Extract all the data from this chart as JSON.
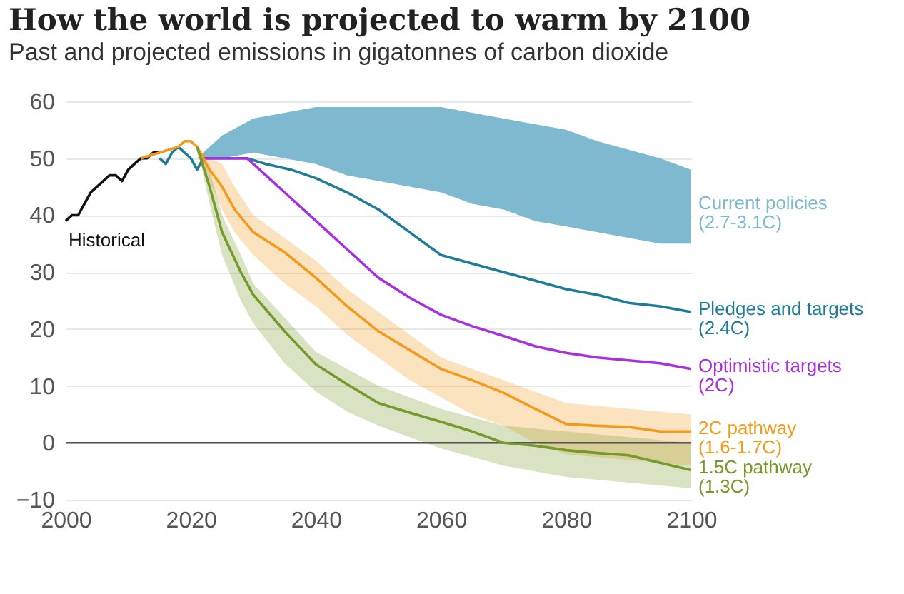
{
  "chart_data": {
    "type": "line",
    "title": "How the world is projected to warm by 2100",
    "subtitle": "Past and projected emissions in gigatonnes of carbon dioxide",
    "xlim": [
      2000,
      2100
    ],
    "xticks": [
      2000,
      2020,
      2040,
      2060,
      2080,
      2100
    ],
    "ylim": [
      -10,
      60
    ],
    "yticks": [
      -10,
      0,
      10,
      20,
      30,
      40,
      50,
      60
    ],
    "grid": "y",
    "legend": false,
    "ref_lines": [
      {
        "axis": "y",
        "value": 0,
        "color": "#555555"
      }
    ],
    "series": [
      {
        "name": "Historical",
        "color": "#111111",
        "x": [
          2000,
          2001,
          2002,
          2003,
          2004,
          2005,
          2006,
          2007,
          2008,
          2009,
          2010,
          2011,
          2012,
          2013,
          2014,
          2015
        ],
        "values": [
          39,
          40,
          40,
          42,
          44,
          45,
          46,
          47,
          47,
          46,
          48,
          49,
          50,
          50,
          51,
          51
        ]
      },
      {
        "name": "Current policies (2.7-3.1C)",
        "color": "#7fb9cf",
        "x": [
          2021,
          2025,
          2030,
          2035,
          2040,
          2045,
          2050,
          2055,
          2060,
          2065,
          2070,
          2075,
          2080,
          2085,
          2090,
          2095,
          2100
        ],
        "values": [
          null,
          null,
          null,
          null,
          null,
          null,
          null,
          null,
          null,
          null,
          null,
          null,
          null,
          null,
          null,
          null,
          null
        ],
        "lower": [
          50,
          50,
          51,
          50,
          49,
          47,
          46,
          45,
          44,
          42,
          41,
          39,
          38,
          37,
          36,
          35,
          35
        ],
        "upper": [
          50,
          54,
          57,
          58,
          59,
          59,
          59,
          59,
          59,
          58,
          57,
          56,
          55,
          53,
          51.5,
          50,
          48
        ]
      },
      {
        "name": "Pledges and targets (2.4C)",
        "color": "#1e7c98",
        "x": [
          2015,
          2016,
          2017,
          2018,
          2019,
          2020,
          2021,
          2022,
          2025,
          2029,
          2032,
          2036,
          2040,
          2045,
          2050,
          2055,
          2060,
          2065,
          2070,
          2075,
          2080,
          2085,
          2090,
          2095,
          2100
        ],
        "values": [
          50,
          49,
          51,
          52,
          51,
          50,
          48,
          50,
          50,
          50,
          49,
          48,
          46.5,
          44,
          41,
          37,
          33,
          31.5,
          30,
          28.5,
          27,
          26,
          24.6,
          24,
          23
        ]
      },
      {
        "name": "Optimistic targets (2C)",
        "color": "#a830e0",
        "x": [
          2022,
          2025,
          2029,
          2030,
          2035,
          2040,
          2045,
          2050,
          2055,
          2060,
          2065,
          2070,
          2075,
          2080,
          2085,
          2090,
          2095,
          2100
        ],
        "values": [
          50,
          50,
          50,
          49,
          44,
          39,
          34,
          29,
          25.5,
          22.5,
          20.5,
          18.8,
          17,
          15.8,
          15,
          14.5,
          14,
          13
        ]
      },
      {
        "name": "2C pathway (1.6-1.7C)",
        "color": "#f39a1c",
        "x": [
          2012,
          2015,
          2018,
          2019,
          2020,
          2021,
          2023,
          2025,
          2027,
          2030,
          2035,
          2040,
          2045,
          2050,
          2055,
          2060,
          2065,
          2070,
          2075,
          2080,
          2085,
          2090,
          2095,
          2100
        ],
        "values": [
          50,
          51,
          52,
          53,
          53,
          52,
          48,
          45,
          41,
          37,
          33.5,
          29,
          24,
          19.6,
          16.3,
          13,
          11,
          8.8,
          6,
          3.3,
          3,
          2.8,
          2,
          2
        ],
        "lower": [
          50,
          51,
          52,
          53,
          53,
          52,
          46,
          41,
          37,
          33,
          28,
          24,
          19,
          15,
          11,
          8,
          5,
          3,
          0,
          -2,
          -2.5,
          -3,
          -3.5,
          -4
        ],
        "upper": [
          50,
          51,
          52,
          53,
          53,
          52,
          50,
          49,
          45,
          40,
          36,
          32,
          27,
          23,
          19,
          15,
          13,
          11,
          9,
          7,
          6.5,
          6,
          5.5,
          5
        ]
      },
      {
        "name": "1.5C pathway (1.3C)",
        "color": "#759a2a",
        "x": [
          2021,
          2023,
          2025,
          2028,
          2030,
          2035,
          2040,
          2045,
          2050,
          2055,
          2060,
          2065,
          2070,
          2075,
          2080,
          2085,
          2090,
          2095,
          2100
        ],
        "values": [
          52,
          45,
          37,
          30,
          26,
          19.6,
          13.8,
          10.3,
          7,
          5.3,
          3.7,
          2,
          0,
          -0.5,
          -1.3,
          -1.8,
          -2.2,
          -3.5,
          -4.8
        ],
        "lower": [
          52,
          42,
          33,
          25,
          21,
          14,
          9,
          5.5,
          3,
          1,
          -1,
          -2.5,
          -4,
          -5,
          -6,
          -6.5,
          -7,
          -7.5,
          -8
        ],
        "upper": [
          52,
          48,
          40,
          33,
          28,
          22,
          16,
          13,
          10,
          8,
          6,
          4.5,
          3,
          2.5,
          2,
          1.5,
          1,
          0.5,
          0
        ]
      }
    ]
  }
}
